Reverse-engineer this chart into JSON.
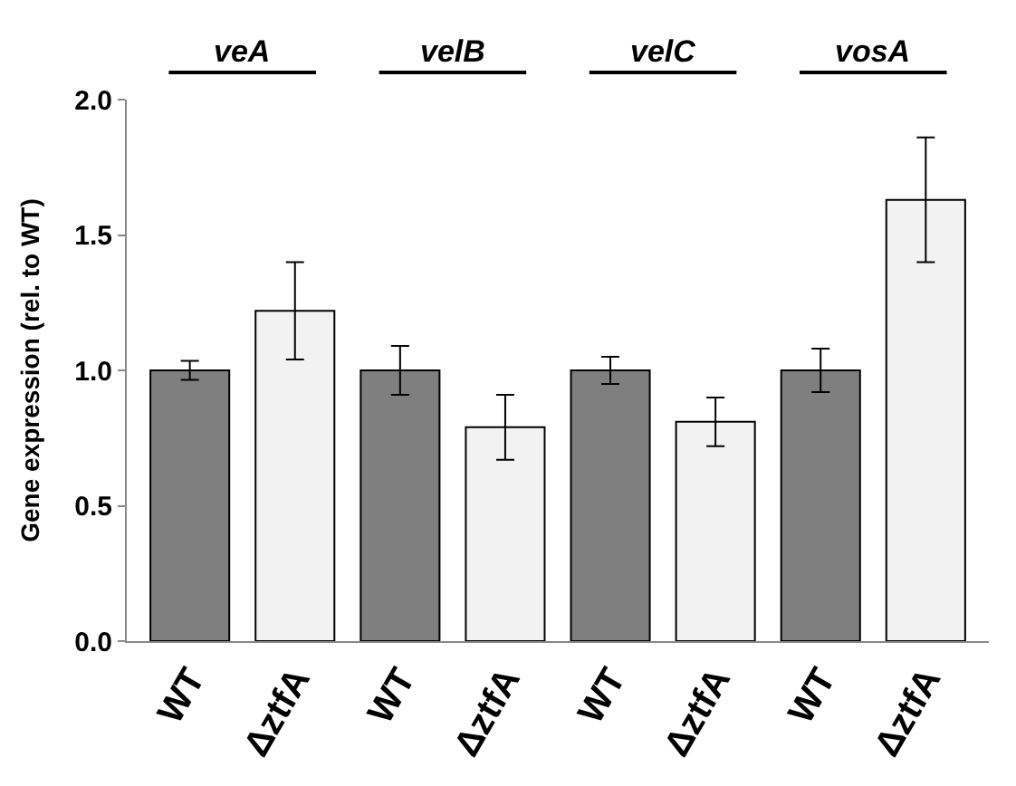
{
  "chart_data": {
    "type": "bar",
    "ylabel": "Gene expression (rel. to WT)",
    "categories": [
      "WT",
      "ΔztfA",
      "WT",
      "ΔztfA",
      "WT",
      "ΔztfA",
      "WT",
      "ΔztfA"
    ],
    "values": [
      1.0,
      1.22,
      1.0,
      0.79,
      1.0,
      0.81,
      1.0,
      1.63
    ],
    "colors": [
      "#7f7f7f",
      "#f2f2f2",
      "#7f7f7f",
      "#f2f2f2",
      "#7f7f7f",
      "#f2f2f2",
      "#7f7f7f",
      "#f2f2f2"
    ],
    "errors": [
      0.035,
      0.18,
      0.09,
      0.12,
      0.05,
      0.09,
      0.08,
      0.23
    ],
    "annotations": [
      "veA",
      "velB",
      "velC",
      "vosA"
    ],
    "ylim": [
      0,
      2.0
    ],
    "yticks": [
      {
        "value": 0,
        "label": "0.0"
      },
      {
        "value": 0.5,
        "label": "0.5"
      },
      {
        "value": 1.0,
        "label": "1.0"
      },
      {
        "value": 1.5,
        "label": "1.5"
      },
      {
        "value": 2.0,
        "label": "2.0"
      }
    ]
  }
}
